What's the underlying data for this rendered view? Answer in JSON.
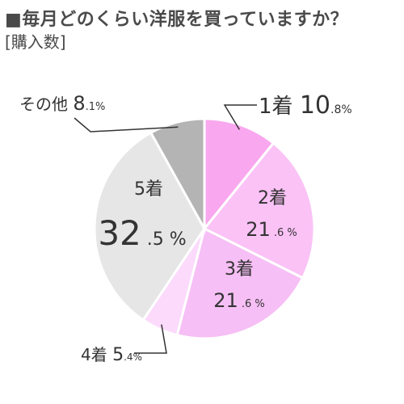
{
  "chart_data": {
    "type": "pie",
    "title": "■毎月どのくらい洋服を買っていますか？",
    "subtitle": "[購入数]",
    "categories": [
      "1着",
      "2着",
      "3着",
      "4着",
      "5着",
      "その他"
    ],
    "values": [
      10.8,
      21.6,
      21.6,
      5.4,
      32.5,
      8.1
    ],
    "unit": "%",
    "colors": [
      "#f9a8ef",
      "#fbc2f6",
      "#f6bff5",
      "#fbdafb",
      "#e6e6e6",
      "#b4b4b4"
    ],
    "start_angle_deg": 0,
    "direction": "clockwise",
    "legend": "none"
  }
}
